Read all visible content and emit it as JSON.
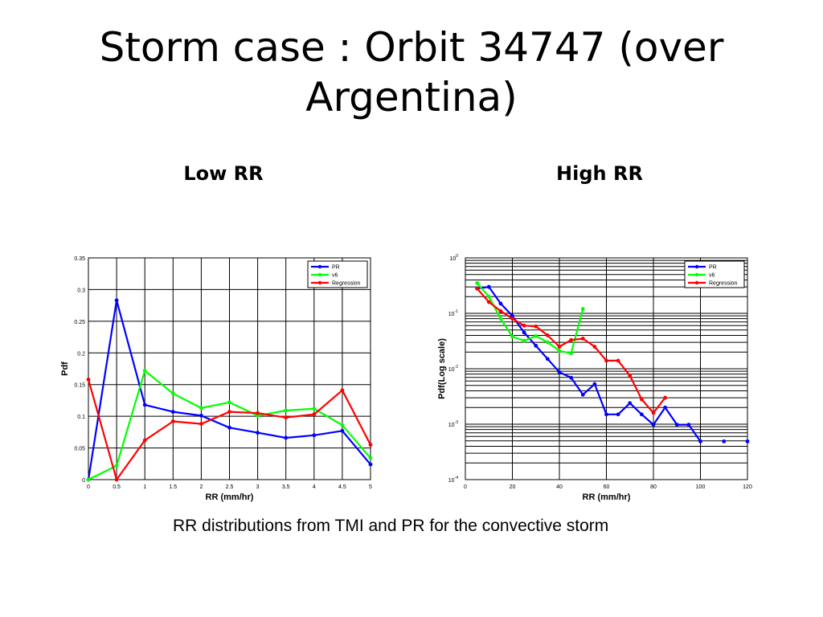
{
  "slide": {
    "title": "Storm case : Orbit 34747 (over Argentina)",
    "caption": "RR distributions from TMI and PR for the convective storm"
  },
  "chart_data": [
    {
      "type": "line",
      "title": "Low RR",
      "xlabel": "RR (mm/hr)",
      "ylabel": "Pdf",
      "xlim": [
        0,
        5
      ],
      "ylim": [
        0,
        0.35
      ],
      "xticks": [
        0,
        0.5,
        1,
        1.5,
        2,
        2.5,
        3,
        3.5,
        4,
        4.5,
        5
      ],
      "xtick_labels": [
        "0",
        "0.5",
        "1",
        "1.5",
        "2",
        "2.5",
        "3",
        "3.5",
        "4",
        "4.5",
        "5"
      ],
      "yticks": [
        0,
        0.05,
        0.1,
        0.15,
        0.2,
        0.25,
        0.3,
        0.35
      ],
      "ytick_labels": [
        "0",
        "0.05",
        "0.1",
        "0.15",
        "0.2",
        "0.25",
        "0.3",
        "0.35"
      ],
      "y_scale": "linear",
      "grid": true,
      "legend": "top-right",
      "series": [
        {
          "name": "PR",
          "color": "#0000ff",
          "x": [
            0,
            0.5,
            1,
            1.5,
            2,
            2.5,
            3,
            3.5,
            4,
            4.5,
            5
          ],
          "y": [
            0.0,
            0.283,
            0.118,
            0.107,
            0.101,
            0.082,
            0.074,
            0.066,
            0.07,
            0.077,
            0.024
          ]
        },
        {
          "name": "v6",
          "color": "#00ff00",
          "x": [
            0,
            0.5,
            1,
            1.5,
            2,
            2.5,
            3,
            3.5,
            4,
            4.5,
            5
          ],
          "y": [
            0.0,
            0.022,
            0.172,
            0.136,
            0.113,
            0.122,
            0.101,
            0.109,
            0.112,
            0.086,
            0.034
          ]
        },
        {
          "name": "Regression",
          "color": "#ff0000",
          "x": [
            0,
            0.5,
            1,
            1.5,
            2,
            2.5,
            3,
            3.5,
            4,
            4.5,
            5
          ],
          "y": [
            0.158,
            0.0,
            0.062,
            0.092,
            0.088,
            0.107,
            0.105,
            0.098,
            0.103,
            0.141,
            0.055
          ]
        }
      ]
    },
    {
      "type": "line",
      "title": "High RR",
      "xlabel": "RR (mm/hr)",
      "ylabel": "Pdf(Log scale)",
      "xlim": [
        0,
        120
      ],
      "ylim": [
        0.0001,
        1
      ],
      "xticks": [
        0,
        20,
        40,
        60,
        80,
        100,
        120
      ],
      "xtick_labels": [
        "0",
        "20",
        "40",
        "60",
        "80",
        "100",
        "120"
      ],
      "y_decades": [
        {
          "value": 0.0001,
          "base": "10",
          "exp": "-4"
        },
        {
          "value": 0.001,
          "base": "10",
          "exp": "-3"
        },
        {
          "value": 0.01,
          "base": "10",
          "exp": "-2"
        },
        {
          "value": 0.1,
          "base": "10",
          "exp": "-1"
        },
        {
          "value": 1,
          "base": "10",
          "exp": "0"
        }
      ],
      "y_scale": "log",
      "grid": true,
      "legend": "top-right",
      "series": [
        {
          "name": "PR",
          "color": "#0000ff",
          "x": [
            5,
            10,
            15,
            20,
            25,
            30,
            35,
            40,
            45,
            50,
            55,
            60,
            65,
            70,
            75,
            80,
            85,
            90,
            95,
            100,
            110,
            120
          ],
          "y": [
            0.28,
            0.3,
            0.15,
            0.09,
            0.045,
            0.026,
            0.015,
            0.0087,
            0.0069,
            0.0034,
            0.0053,
            0.0015,
            0.0015,
            0.0024,
            0.0015,
            0.00098,
            0.002,
            0.00098,
            0.00098,
            0.00049,
            0.00049,
            0.00049
          ],
          "segments": [
            [
              0,
              19
            ]
          ],
          "markers": true
        },
        {
          "name": "v6",
          "color": "#00ff00",
          "x": [
            5,
            10,
            15,
            20,
            25,
            30,
            35,
            40,
            45,
            50
          ],
          "y": [
            0.35,
            0.2,
            0.08,
            0.038,
            0.032,
            0.039,
            0.03,
            0.021,
            0.019,
            0.12
          ]
        },
        {
          "name": "Regression",
          "color": "#ff0000",
          "x": [
            5,
            10,
            15,
            20,
            25,
            30,
            35,
            40,
            45,
            50,
            55,
            60,
            65,
            70,
            75,
            80,
            85
          ],
          "y": [
            0.28,
            0.16,
            0.11,
            0.08,
            0.06,
            0.058,
            0.04,
            0.025,
            0.033,
            0.035,
            0.025,
            0.014,
            0.014,
            0.0075,
            0.0028,
            0.0016,
            0.003
          ]
        }
      ]
    }
  ]
}
